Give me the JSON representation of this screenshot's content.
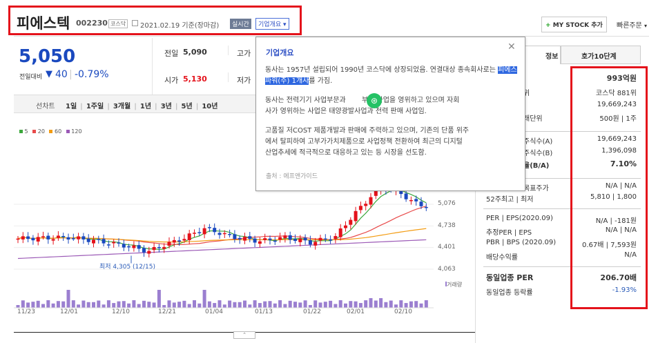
{
  "header": {
    "company_name": "피에스텍",
    "code": "002230",
    "market_tag": "코스닥",
    "date_text": "2021.02.19 기준(장마감)",
    "realtime_badge": "실시간",
    "overview_button": "기업개요",
    "my_stock_button": "MY STOCK 추가",
    "quick_order": "빠른주문"
  },
  "price": {
    "current": "5,050",
    "change_label": "전일대비",
    "change": "40",
    "change_pct": "-0.79%",
    "prev_label": "전일",
    "prev": "5,090",
    "high_label": "고가",
    "open_label": "시가",
    "open": "5,130",
    "low_label": "저가"
  },
  "chart_tabs": {
    "label": "선차트",
    "periods": [
      "1일",
      "1주일",
      "3개월",
      "1년",
      "3년",
      "5년",
      "10년"
    ]
  },
  "legend": [
    "5",
    "20",
    "60",
    "120"
  ],
  "legend_colors": [
    "#3ca83c",
    "#e84a4a",
    "#f39c12",
    "#9b59b6"
  ],
  "y_axis": [
    "5,076",
    "4,738",
    "4,401",
    "4,063"
  ],
  "x_axis": [
    "11/23",
    "12/01",
    "12/10",
    "12/21",
    "01/04",
    "01/13",
    "01/22",
    "02/01",
    "02/10"
  ],
  "min_annotation": "최저 4,305 (12/15)",
  "volume_label": "거래량",
  "popup": {
    "title": "기업개요",
    "para1_before": "동사는 1957년 설립되어 1990년 코스닥에 상장되었음. 연결대상 종속회사로는 ",
    "para1_highlight": "피에스파워(주) 1개사",
    "para1_after": "를 가짐.",
    "para2": "동사는 전력기기 사업부문과 ████부품 사업을 영위하고 있으며 자회사가 영위하는 사업은 태양광발전사업과 전력 판매 사업임.",
    "para2_line1": "동사는 전력기기 사업부문과 ",
    "para2_line1b": "부품 사업을 영위하고 있으며 자회",
    "para2_line2": "사가 영위하는 사업은 태양광발",
    "para2_line2b": "사업과 전력 판매 사업임.",
    "para3_line1": "고품질 저COST 제품개발과 판매에 주력하고 있으며, 기존의 단품 위주",
    "para3_line2": "에서 탈피하여 고부가가치제품으로 사업정책 전환하여 최근의 디지털",
    "para3_line3": "산업추세에 적극적으로 대응하고 있는 등 시장을 선도함.",
    "source": "출처 : 에프앤가이드"
  },
  "right_tabs": {
    "tab1": "정보",
    "tab2": "호가10단계"
  },
  "info_rows": [
    {
      "label": "",
      "value": "993억원"
    },
    {
      "label": "위",
      "value": "코스닥 881위"
    },
    {
      "label": "",
      "value": "19,669,243"
    },
    {
      "label": "래단위",
      "value": "500원 | 1주"
    },
    {
      "label": "주식수(A)",
      "value": "19,669,243"
    },
    {
      "label": "주식수(B)",
      "value": "1,396,098"
    },
    {
      "label": "율(B/A)",
      "value": "7.10%"
    },
    {
      "label": "목표주가",
      "value": "N/A | N/A"
    },
    {
      "label": "52주최고 | 최저",
      "value": "5,810 | 1,800"
    },
    {
      "label": "PER | EPS(2020.09)",
      "value": "N/A | -181원"
    },
    {
      "label": "추정PER | EPS",
      "value": "N/A | N/A"
    },
    {
      "label": "PBR | BPS (2020.09)",
      "value": "0.67배 | 7,593원"
    },
    {
      "label": "배당수익률",
      "value": "N/A"
    },
    {
      "label": "동일업종 PER",
      "value": "206.70배"
    },
    {
      "label": "동일업종 등락률",
      "value": "-1.93%"
    }
  ]
}
